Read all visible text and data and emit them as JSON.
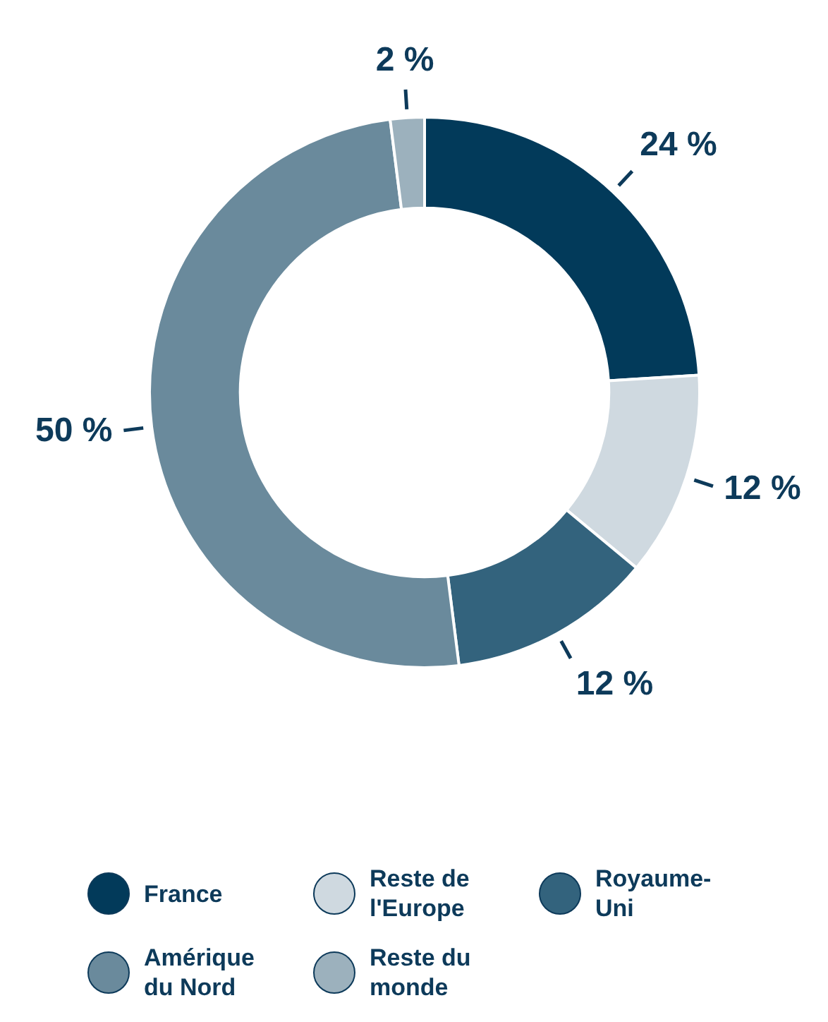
{
  "chart_data": {
    "type": "donut",
    "categories": [
      "France",
      "Reste de l'Europe",
      "Royaume-Uni",
      "Amérique du Nord",
      "Reste du monde"
    ],
    "values": [
      24,
      12,
      12,
      50,
      2
    ],
    "colors": [
      "#023a5a",
      "#cfd9e0",
      "#33637d",
      "#6a8a9c",
      "#9cb1bd"
    ],
    "value_labels": [
      "24 %",
      "12 %",
      "12 %",
      "50 %",
      "2 %"
    ],
    "legend": "bottom"
  }
}
